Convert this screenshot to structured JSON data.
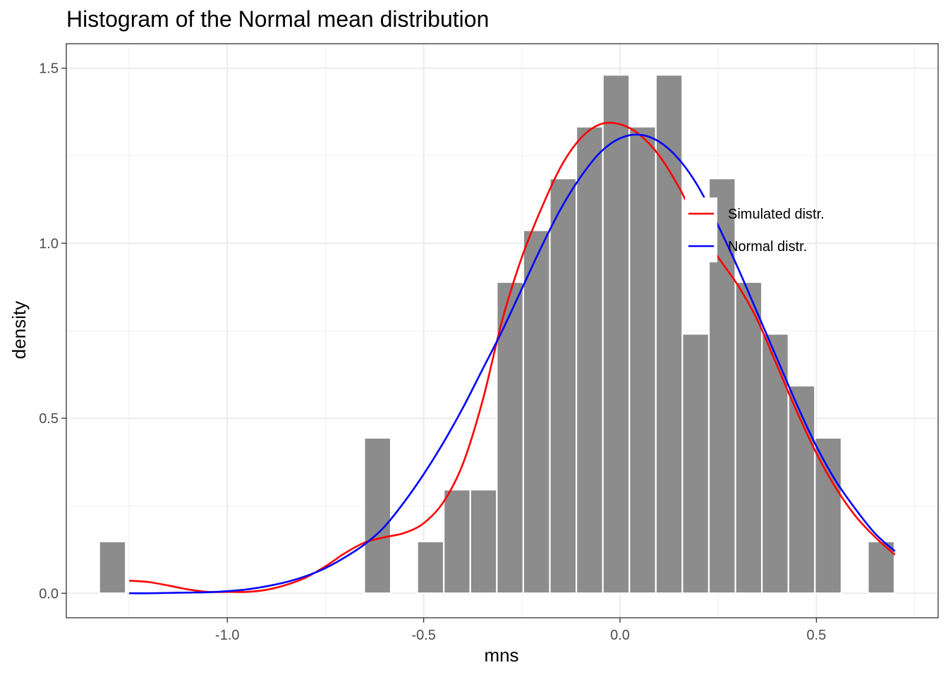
{
  "chart_data": {
    "type": "histogram",
    "title": "Histogram of the Normal mean distribution",
    "xlabel": "mns",
    "ylabel": "density",
    "xlim": [
      -1.41,
      0.81
    ],
    "ylim": [
      -0.07,
      1.57
    ],
    "x_ticks": [
      -1.0,
      -0.5,
      0.0,
      0.5
    ],
    "x_tick_labels": [
      "-1.0",
      "-0.5",
      "0.0",
      "0.5"
    ],
    "y_ticks": [
      0.0,
      0.5,
      1.0,
      1.5
    ],
    "y_tick_labels": [
      "0.0",
      "0.5",
      "1.0",
      "1.5"
    ],
    "grid": true,
    "bin_width": 0.0675,
    "bins": [
      {
        "x": -1.2925,
        "density": 0.148
      },
      {
        "x": -1.225,
        "density": 0.0
      },
      {
        "x": -1.1575,
        "density": 0.0
      },
      {
        "x": -1.09,
        "density": 0.0
      },
      {
        "x": -1.0225,
        "density": 0.0
      },
      {
        "x": -0.955,
        "density": 0.0
      },
      {
        "x": -0.8875,
        "density": 0.0
      },
      {
        "x": -0.82,
        "density": 0.0
      },
      {
        "x": -0.7525,
        "density": 0.0
      },
      {
        "x": -0.685,
        "density": 0.0
      },
      {
        "x": -0.6175,
        "density": 0.444
      },
      {
        "x": -0.55,
        "density": 0.0
      },
      {
        "x": -0.4825,
        "density": 0.148
      },
      {
        "x": -0.415,
        "density": 0.296
      },
      {
        "x": -0.3475,
        "density": 0.296
      },
      {
        "x": -0.28,
        "density": 0.889
      },
      {
        "x": -0.2125,
        "density": 1.037
      },
      {
        "x": -0.145,
        "density": 1.185
      },
      {
        "x": -0.0775,
        "density": 1.333
      },
      {
        "x": -0.01,
        "density": 1.481
      },
      {
        "x": 0.0575,
        "density": 1.333
      },
      {
        "x": 0.125,
        "density": 1.481
      },
      {
        "x": 0.1925,
        "density": 0.741
      },
      {
        "x": 0.26,
        "density": 1.185
      },
      {
        "x": 0.3275,
        "density": 0.889
      },
      {
        "x": 0.395,
        "density": 0.741
      },
      {
        "x": 0.4625,
        "density": 0.593
      },
      {
        "x": 0.53,
        "density": 0.444
      },
      {
        "x": 0.5975,
        "density": 0.0
      },
      {
        "x": 0.665,
        "density": 0.148
      }
    ],
    "series": [
      {
        "name": "Simulated distr.",
        "color": "#ff0000",
        "x": [
          -1.25,
          -1.2,
          -1.15,
          -1.1,
          -1.05,
          -1.0,
          -0.95,
          -0.9,
          -0.85,
          -0.8,
          -0.75,
          -0.7,
          -0.65,
          -0.6,
          -0.55,
          -0.5,
          -0.45,
          -0.4,
          -0.35,
          -0.3,
          -0.25,
          -0.2,
          -0.15,
          -0.1,
          -0.05,
          0.0,
          0.05,
          0.1,
          0.15,
          0.2,
          0.25,
          0.3,
          0.35,
          0.4,
          0.45,
          0.5,
          0.55,
          0.6,
          0.65,
          0.7
        ],
        "y": [
          0.036,
          0.032,
          0.022,
          0.011,
          0.004,
          0.004,
          0.004,
          0.01,
          0.024,
          0.045,
          0.077,
          0.115,
          0.145,
          0.16,
          0.172,
          0.2,
          0.26,
          0.37,
          0.55,
          0.78,
          0.96,
          1.1,
          1.22,
          1.3,
          1.34,
          1.34,
          1.31,
          1.25,
          1.16,
          1.05,
          0.96,
          0.88,
          0.78,
          0.65,
          0.52,
          0.4,
          0.3,
          0.22,
          0.16,
          0.11
        ]
      },
      {
        "name": "Normal distr.",
        "color": "#0000ff",
        "x": [
          -1.25,
          -1.2,
          -1.15,
          -1.1,
          -1.05,
          -1.0,
          -0.95,
          -0.9,
          -0.85,
          -0.8,
          -0.75,
          -0.7,
          -0.65,
          -0.6,
          -0.55,
          -0.5,
          -0.45,
          -0.4,
          -0.35,
          -0.3,
          -0.25,
          -0.2,
          -0.15,
          -0.1,
          -0.05,
          0.0,
          0.05,
          0.1,
          0.15,
          0.2,
          0.25,
          0.3,
          0.35,
          0.4,
          0.45,
          0.5,
          0.55,
          0.6,
          0.65,
          0.7
        ],
        "y": [
          0.0,
          0.0,
          0.001,
          0.002,
          0.003,
          0.006,
          0.011,
          0.02,
          0.032,
          0.049,
          0.072,
          0.103,
          0.14,
          0.19,
          0.26,
          0.34,
          0.43,
          0.53,
          0.64,
          0.75,
          0.87,
          0.99,
          1.1,
          1.19,
          1.26,
          1.3,
          1.31,
          1.29,
          1.24,
          1.16,
          1.05,
          0.93,
          0.8,
          0.67,
          0.54,
          0.42,
          0.32,
          0.24,
          0.17,
          0.12
        ]
      }
    ],
    "legend": {
      "placement": "right-inside",
      "entries": [
        "Simulated distr.",
        "Normal distr."
      ]
    }
  }
}
